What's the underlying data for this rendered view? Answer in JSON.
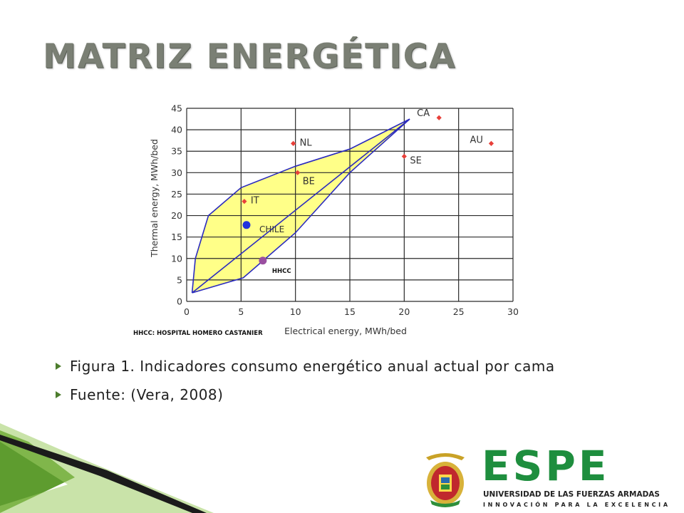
{
  "slide": {
    "title": "MATRIZ ENERGÉTICA",
    "bullets": [
      "Figura 1. Indicadores consumo energético anual actual por cama",
      "Fuente: (Vera, 2008)"
    ]
  },
  "chart_data": {
    "type": "scatter",
    "xlabel": "Electrical energy, MWh/bed",
    "ylabel": "Thermal energy, MWh/bed",
    "footnote": "HHCC: HOSPITAL HOMERO CASTANIER",
    "xlim": [
      0,
      30
    ],
    "ylim": [
      0,
      45
    ],
    "xticks": [
      0,
      5,
      10,
      15,
      20,
      25,
      30
    ],
    "yticks": [
      0,
      5,
      10,
      15,
      20,
      25,
      30,
      35,
      40,
      45
    ],
    "grid": true,
    "points": [
      {
        "label": "CA",
        "x": 23.2,
        "y": 42.8,
        "marker": "diamond",
        "color": "#e8403a"
      },
      {
        "label": "AU",
        "x": 28.0,
        "y": 36.8,
        "marker": "diamond",
        "color": "#e8403a"
      },
      {
        "label": "NL",
        "x": 9.8,
        "y": 36.8,
        "marker": "diamond",
        "color": "#e8403a"
      },
      {
        "label": "SE",
        "x": 20.0,
        "y": 33.8,
        "marker": "diamond",
        "color": "#e8403a"
      },
      {
        "label": "BE",
        "x": 10.2,
        "y": 30.0,
        "marker": "diamond",
        "color": "#e8403a"
      },
      {
        "label": "IT",
        "x": 5.3,
        "y": 23.3,
        "marker": "diamond",
        "color": "#e8403a"
      },
      {
        "label": "CHILE",
        "x": 5.5,
        "y": 17.8,
        "marker": "circle",
        "color": "#2233dd"
      },
      {
        "label": "HHCC",
        "x": 7.0,
        "y": 9.5,
        "marker": "circle",
        "color": "#9a4fa0"
      }
    ],
    "envelope_upper": [
      [
        0.5,
        2
      ],
      [
        0.8,
        10
      ],
      [
        2,
        20
      ],
      [
        5,
        26.5
      ],
      [
        10,
        31.5
      ],
      [
        15,
        35.5
      ],
      [
        20.5,
        42.5
      ]
    ],
    "envelope_lower": [
      [
        20.5,
        42.5
      ],
      [
        15,
        30
      ],
      [
        10,
        16
      ],
      [
        5.2,
        5.5
      ],
      [
        0.5,
        2
      ]
    ],
    "diagonal": [
      [
        0.5,
        2
      ],
      [
        20.5,
        42.5
      ]
    ],
    "colors": {
      "envelope_fill": "#ffff88",
      "envelope_line": "#2b2bbf",
      "grid": "#2a2a2a"
    }
  },
  "logo": {
    "wordmark": "ESPE",
    "subtitle": "UNIVERSIDAD DE LAS FUERZAS ARMADAS",
    "tagline": "INNOVACIÓN PARA LA EXCELENCIA",
    "colors": {
      "brand_green": "#1e8e3e",
      "crest_gold": "#c9a227",
      "crest_red": "#c0282d"
    }
  }
}
